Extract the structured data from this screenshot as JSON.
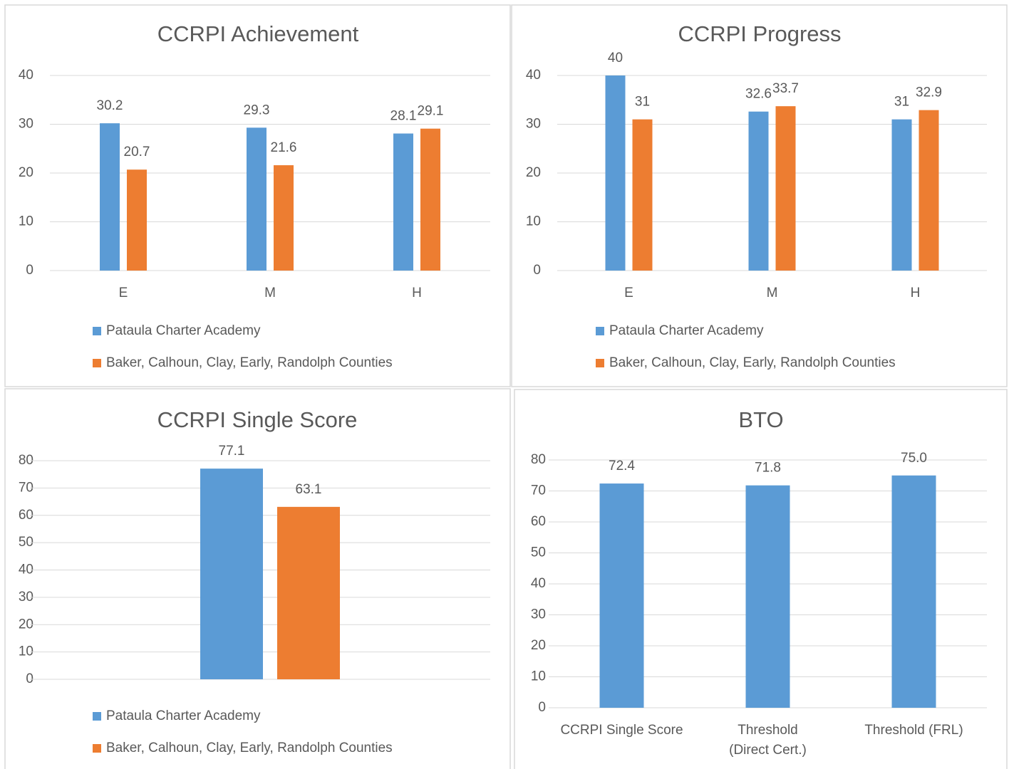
{
  "chart_data": [
    {
      "type": "bar",
      "title": "CCRPI Achievement",
      "categories": [
        "E",
        "M",
        "H"
      ],
      "series": [
        {
          "name": "Pataula Charter Academy",
          "color": "#5b9bd5",
          "values": [
            30.2,
            29.3,
            28.1
          ]
        },
        {
          "name": "Baker, Calhoun, Clay, Early, Randolph Counties",
          "color": "#ed7d31",
          "values": [
            20.7,
            21.6,
            29.1
          ]
        }
      ],
      "ylim": [
        0,
        40
      ],
      "yticks": [
        0,
        10,
        20,
        30,
        40
      ],
      "grid": true,
      "legend": "bottom"
    },
    {
      "type": "bar",
      "title": "CCRPI Progress",
      "categories": [
        "E",
        "M",
        "H"
      ],
      "series": [
        {
          "name": "Pataula Charter Academy",
          "color": "#5b9bd5",
          "values": [
            40,
            32.6,
            31
          ]
        },
        {
          "name": "Baker, Calhoun, Clay, Early, Randolph Counties",
          "color": "#ed7d31",
          "values": [
            31,
            33.7,
            32.9
          ]
        }
      ],
      "ylim": [
        0,
        40
      ],
      "yticks": [
        0,
        10,
        20,
        30,
        40
      ],
      "grid": true,
      "legend": "bottom"
    },
    {
      "type": "bar",
      "title": "CCRPI Single Score",
      "categories": [
        null
      ],
      "series": [
        {
          "name": "Pataula Charter Academy",
          "color": "#5b9bd5",
          "values": [
            77.1
          ]
        },
        {
          "name": "Baker, Calhoun, Clay, Early, Randolph Counties",
          "color": "#ed7d31",
          "values": [
            63.1
          ]
        }
      ],
      "ylim": [
        0,
        80
      ],
      "yticks": [
        0,
        10,
        20,
        30,
        40,
        50,
        60,
        70,
        80
      ],
      "grid": true,
      "legend": "bottom"
    },
    {
      "type": "bar",
      "title": "BTO",
      "categories": [
        "CCRPI Single Score",
        "Threshold\n(Direct Cert.)",
        "Threshold (FRL)"
      ],
      "values": [
        72.4,
        71.8,
        75.0
      ],
      "value_labels": [
        "72.4",
        "71.8",
        "75.0"
      ],
      "color": "#5b9bd5",
      "ylim": [
        0,
        80
      ],
      "yticks": [
        0,
        10,
        20,
        30,
        40,
        50,
        60,
        70,
        80
      ],
      "grid": true
    }
  ]
}
